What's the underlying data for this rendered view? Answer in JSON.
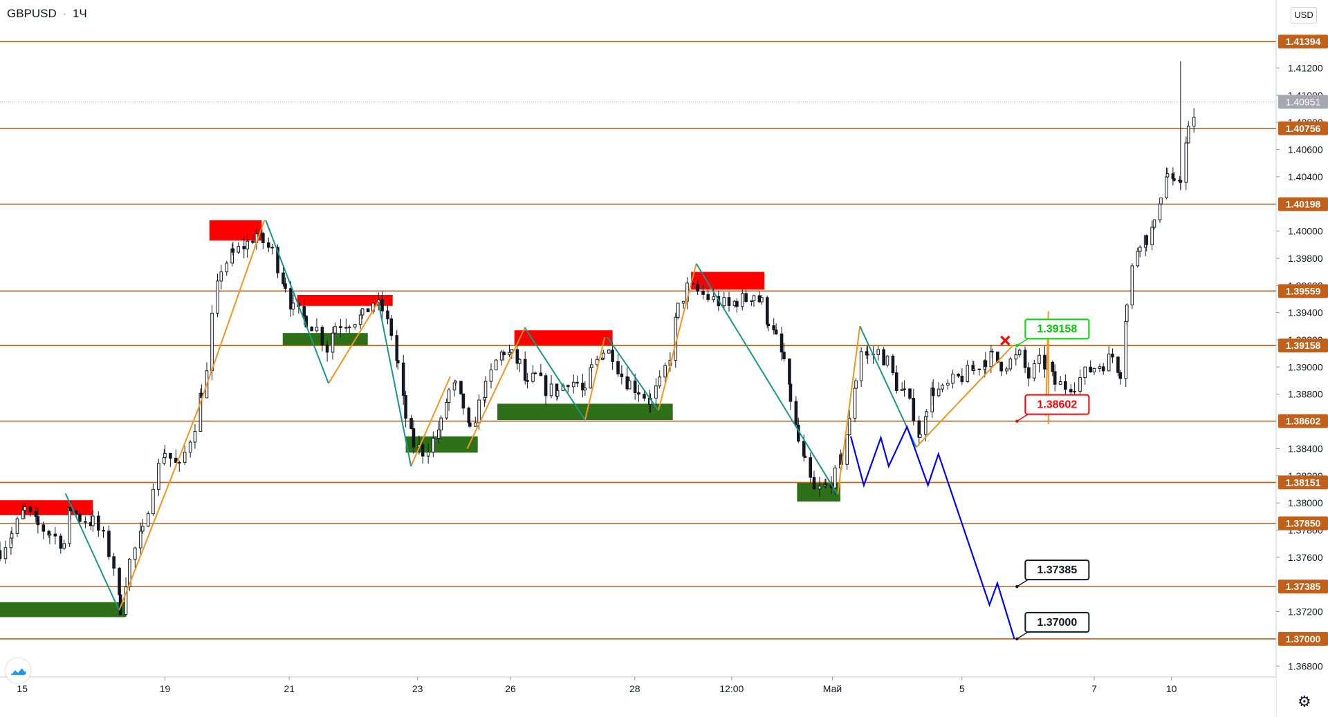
{
  "header": {
    "symbol": "GBPUSD",
    "separator": "·",
    "interval": "1Ч"
  },
  "currency_button": "USD",
  "icons": {
    "logo": "tradingview-logo-icon",
    "settings": "gear-icon"
  },
  "colors": {
    "level_line": "#c0601a",
    "price_label_bg": "#c0601a",
    "current_label_bg": "#a6a6b0",
    "supply_zone": "#ff0000",
    "demand_zone": "#2e7018",
    "impulse_up": "#f7941d",
    "impulse_down": "#17968a",
    "forecast": "#0000ff",
    "candle": "#131722"
  },
  "chart_data": {
    "type": "candlestick",
    "symbol": "GBPUSD",
    "timeframe": "1Ч",
    "ylim": [
      1.3672,
      1.417
    ],
    "y_ticks": [
      "1.41200",
      "1.41000",
      "1.40800",
      "1.40600",
      "1.40400",
      "1.40000",
      "1.39800",
      "1.39600",
      "1.39400",
      "1.39200",
      "1.39000",
      "1.38800",
      "1.38400",
      "1.38200",
      "1.38000",
      "1.37800",
      "1.37600",
      "1.37200",
      "1.36800"
    ],
    "y_tick_values": [
      1.412,
      1.41,
      1.408,
      1.406,
      1.404,
      1.4,
      1.398,
      1.396,
      1.394,
      1.392,
      1.39,
      1.388,
      1.384,
      1.382,
      1.38,
      1.378,
      1.376,
      1.372,
      1.368
    ],
    "x_ticks": [
      "15",
      "19",
      "21",
      "23",
      "26",
      "28",
      "12:00",
      "Май",
      "5",
      "7",
      "10"
    ],
    "x_tick_positions": [
      0.2,
      11.1,
      20.6,
      30.4,
      37.5,
      47,
      54.4,
      62.1,
      72,
      82.1,
      88
    ],
    "x_range": [
      -1.5,
      96
    ],
    "levels": [
      {
        "value": 1.41394,
        "label": "1.41394"
      },
      {
        "value": 1.40756,
        "label": "1.40756"
      },
      {
        "value": 1.40198,
        "label": "1.40198"
      },
      {
        "value": 1.39559,
        "label": "1.39559"
      },
      {
        "value": 1.39158,
        "label": "1.39158"
      },
      {
        "value": 1.38602,
        "label": "1.38602"
      },
      {
        "value": 1.38151,
        "label": "1.38151"
      },
      {
        "value": 1.3785,
        "label": "1.37850"
      },
      {
        "value": 1.37385,
        "label": "1.37385"
      },
      {
        "value": 1.37,
        "label": "1.37000"
      }
    ],
    "current_price": {
      "value": 1.40951,
      "label": "1.40951"
    },
    "zones": [
      {
        "kind": "supply",
        "x": [
          -1.5,
          5.6
        ],
        "y": [
          1.3791,
          1.3802
        ]
      },
      {
        "kind": "demand",
        "x": [
          -1.5,
          8.1
        ],
        "y": [
          1.3716,
          1.3727
        ]
      },
      {
        "kind": "supply",
        "x": [
          14.5,
          18.5
        ],
        "y": [
          1.3993,
          1.4008
        ]
      },
      {
        "kind": "supply",
        "x": [
          21.2,
          28.5
        ],
        "y": [
          1.3945,
          1.3953
        ]
      },
      {
        "kind": "demand",
        "x": [
          20.1,
          26.6
        ],
        "y": [
          1.3916,
          1.3925
        ]
      },
      {
        "kind": "supply",
        "x": [
          37.8,
          45.3
        ],
        "y": [
          1.3916,
          1.3927
        ]
      },
      {
        "kind": "demand",
        "x": [
          29.5,
          35
        ],
        "y": [
          1.3837,
          1.3849
        ]
      },
      {
        "kind": "demand",
        "x": [
          36.5,
          49.9
        ],
        "y": [
          1.3861,
          1.3873
        ]
      },
      {
        "kind": "supply",
        "x": [
          51.3,
          56.9
        ],
        "y": [
          1.3957,
          1.397
        ]
      },
      {
        "kind": "demand",
        "x": [
          59.4,
          62.7
        ],
        "y": [
          1.3801,
          1.3815
        ]
      }
    ],
    "impulse_up": [
      [
        [
          7.6,
          1.3721
        ],
        [
          13.6,
          1.3868
        ],
        [
          18.7,
          1.4008
        ]
      ],
      [
        [
          23.6,
          1.3888
        ],
        [
          27.4,
          1.3948
        ]
      ],
      [
        [
          29.9,
          1.3827
        ],
        [
          32.9,
          1.3893
        ]
      ],
      [
        [
          34.2,
          1.384
        ],
        [
          38.6,
          1.3929
        ]
      ],
      [
        [
          43.2,
          1.3861
        ],
        [
          44.7,
          1.3922
        ]
      ],
      [
        [
          48.8,
          1.3868
        ],
        [
          51.7,
          1.3976
        ]
      ],
      [
        [
          62.5,
          1.3806
        ],
        [
          64.2,
          1.393
        ]
      ],
      [
        [
          68.5,
          1.3841
        ],
        [
          75.9,
          1.3916
        ]
      ],
      [
        [
          78.4,
          1.3864
        ],
        [
          78.6,
          1.3941
        ]
      ]
    ],
    "impulse_down": [
      [
        [
          3.5,
          1.3807
        ],
        [
          7.6,
          1.3721
        ]
      ],
      [
        [
          18.8,
          1.4008
        ],
        [
          23.6,
          1.3888
        ]
      ],
      [
        [
          27.4,
          1.3948
        ],
        [
          29.9,
          1.3827
        ]
      ],
      [
        [
          38.6,
          1.3929
        ],
        [
          43.2,
          1.3861
        ]
      ],
      [
        [
          44.9,
          1.3922
        ],
        [
          48.8,
          1.3868
        ]
      ],
      [
        [
          51.7,
          1.3976
        ],
        [
          62.5,
          1.3806
        ]
      ],
      [
        [
          64.2,
          1.393
        ],
        [
          68.5,
          1.3841
        ]
      ]
    ],
    "forecast_path": [
      [
        63.5,
        1.3849
      ],
      [
        64.5,
        1.3813
      ],
      [
        65.8,
        1.3848
      ],
      [
        66.4,
        1.3827
      ],
      [
        67.8,
        1.3856
      ],
      [
        69.4,
        1.3813
      ],
      [
        70.2,
        1.3836
      ],
      [
        74.1,
        1.3725
      ],
      [
        74.7,
        1.3741
      ],
      [
        76,
        1.37
      ]
    ],
    "candle_anchors": [
      [
        -1.5,
        1.3765
      ],
      [
        -0.6,
        1.3777
      ],
      [
        0.4,
        1.3795
      ],
      [
        1.4,
        1.3783
      ],
      [
        2.3,
        1.3778
      ],
      [
        3.4,
        1.377
      ],
      [
        3.9,
        1.3796
      ],
      [
        4.6,
        1.3789
      ],
      [
        5.6,
        1.3786
      ],
      [
        6.4,
        1.3774
      ],
      [
        7.2,
        1.3754
      ],
      [
        7.7,
        1.3723
      ],
      [
        8.4,
        1.3757
      ],
      [
        9.4,
        1.3778
      ],
      [
        10.2,
        1.3816
      ],
      [
        11.1,
        1.3838
      ],
      [
        12.2,
        1.3825
      ],
      [
        13.4,
        1.3858
      ],
      [
        13.9,
        1.3882
      ],
      [
        14.3,
        1.3895
      ],
      [
        14.7,
        1.3935
      ],
      [
        15.4,
        1.3973
      ],
      [
        16.3,
        1.3983
      ],
      [
        17.4,
        1.3991
      ],
      [
        18.1,
        1.3998
      ],
      [
        18.6,
        1.3992
      ],
      [
        19.3,
        1.3985
      ],
      [
        20.3,
        1.3961
      ],
      [
        20.9,
        1.3942
      ],
      [
        21.9,
        1.3935
      ],
      [
        22.7,
        1.3928
      ],
      [
        23.5,
        1.3914
      ],
      [
        24.1,
        1.3931
      ],
      [
        25.2,
        1.3934
      ],
      [
        26.2,
        1.3937
      ],
      [
        27,
        1.3948
      ],
      [
        27.7,
        1.3942
      ],
      [
        28.4,
        1.3925
      ],
      [
        28.9,
        1.3901
      ],
      [
        29.5,
        1.3863
      ],
      [
        30.1,
        1.3843
      ],
      [
        30.8,
        1.3838
      ],
      [
        31.6,
        1.3846
      ],
      [
        32.2,
        1.3858
      ],
      [
        32.8,
        1.3882
      ],
      [
        33.3,
        1.3885
      ],
      [
        33.9,
        1.3871
      ],
      [
        34.4,
        1.3851
      ],
      [
        35.1,
        1.3872
      ],
      [
        35.6,
        1.3884
      ],
      [
        36.4,
        1.3904
      ],
      [
        37,
        1.3912
      ],
      [
        37.6,
        1.3908
      ],
      [
        38.2,
        1.3902
      ],
      [
        38.8,
        1.3885
      ],
      [
        39.4,
        1.3893
      ],
      [
        40.2,
        1.3884
      ],
      [
        41.1,
        1.3882
      ],
      [
        41.9,
        1.3891
      ],
      [
        42.6,
        1.3888
      ],
      [
        43.2,
        1.3879
      ],
      [
        43.7,
        1.3899
      ],
      [
        44.6,
        1.3912
      ],
      [
        45.3,
        1.391
      ],
      [
        46,
        1.3894
      ],
      [
        46.6,
        1.3888
      ],
      [
        47.3,
        1.3883
      ],
      [
        48.2,
        1.3875
      ],
      [
        48.9,
        1.3887
      ],
      [
        49.7,
        1.3909
      ],
      [
        50.3,
        1.3943
      ],
      [
        51,
        1.3958
      ],
      [
        51.8,
        1.3955
      ],
      [
        52.6,
        1.3951
      ],
      [
        53.4,
        1.3948
      ],
      [
        54.2,
        1.3944
      ],
      [
        54.8,
        1.3949
      ],
      [
        55.5,
        1.395
      ],
      [
        56.1,
        1.3954
      ],
      [
        56.7,
        1.3947
      ],
      [
        57.2,
        1.3934
      ],
      [
        57.8,
        1.392
      ],
      [
        58.4,
        1.3905
      ],
      [
        58.9,
        1.3877
      ],
      [
        59.5,
        1.3845
      ],
      [
        60,
        1.3828
      ],
      [
        60.7,
        1.3808
      ],
      [
        61.6,
        1.3812
      ],
      [
        62.3,
        1.382
      ],
      [
        62.8,
        1.3832
      ],
      [
        63.4,
        1.3859
      ],
      [
        63.9,
        1.3892
      ],
      [
        64.3,
        1.3913
      ],
      [
        64.8,
        1.3908
      ],
      [
        65.6,
        1.3911
      ],
      [
        66.3,
        1.3904
      ],
      [
        67,
        1.3887
      ],
      [
        67.6,
        1.388
      ],
      [
        68.3,
        1.3866
      ],
      [
        68.8,
        1.3848
      ],
      [
        69.3,
        1.3872
      ],
      [
        69.8,
        1.3883
      ],
      [
        70.5,
        1.3882
      ],
      [
        71.3,
        1.3889
      ],
      [
        72,
        1.3893
      ],
      [
        72.9,
        1.3898
      ],
      [
        73.8,
        1.3906
      ],
      [
        74.3,
        1.3907
      ],
      [
        75,
        1.3902
      ],
      [
        75.7,
        1.3904
      ],
      [
        76.4,
        1.3908
      ],
      [
        77.1,
        1.3893
      ],
      [
        77.9,
        1.3903
      ],
      [
        78.5,
        1.3901
      ],
      [
        79.1,
        1.3888
      ],
      [
        79.9,
        1.3886
      ],
      [
        80.6,
        1.3888
      ],
      [
        81.4,
        1.3895
      ],
      [
        82.1,
        1.39
      ],
      [
        82.8,
        1.3903
      ],
      [
        83.5,
        1.3908
      ],
      [
        84.1,
        1.3897
      ],
      [
        84.6,
        1.3945
      ],
      [
        85,
        1.3972
      ],
      [
        85.6,
        1.3994
      ],
      [
        86.1,
        1.3995
      ],
      [
        86.7,
        1.4003
      ],
      [
        87.2,
        1.4028
      ],
      [
        87.7,
        1.4042
      ],
      [
        88.2,
        1.4032
      ],
      [
        88.7,
        1.404
      ],
      [
        89.3,
        1.4073
      ],
      [
        89.9,
        1.4091
      ]
    ],
    "forecast_labels": [
      {
        "value": 1.39158,
        "label": "1.39158",
        "x": 76.2,
        "style": "green"
      },
      {
        "value": 1.38602,
        "label": "1.38602",
        "x": 76.2,
        "style": "red"
      },
      {
        "value": 1.37385,
        "label": "1.37385",
        "x": 76.2,
        "style": "black"
      },
      {
        "value": 1.37,
        "label": "1.37000",
        "x": 76.2,
        "style": "black"
      }
    ]
  }
}
